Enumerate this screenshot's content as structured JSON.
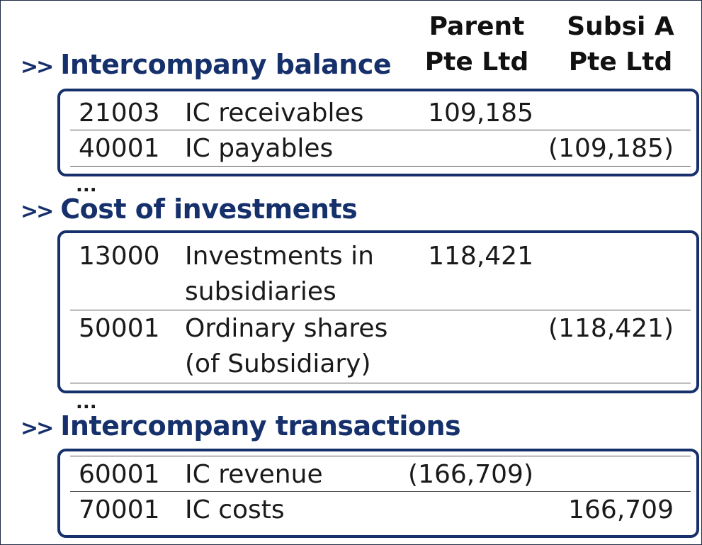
{
  "columns": {
    "parent": [
      "Parent",
      "Pte Ltd"
    ],
    "subsi": [
      "Subsi A",
      "Pte Ltd"
    ]
  },
  "chevron": ">>",
  "ellipsis": "...",
  "sections": [
    {
      "title": "Intercompany balance",
      "rows": [
        {
          "code": "21003",
          "desc": "IC receivables",
          "parent": "109,185",
          "subsi": ""
        },
        {
          "code": "40001",
          "desc": "IC payables",
          "parent": "",
          "subsi": "(109,185)"
        }
      ]
    },
    {
      "title": "Cost of investments",
      "rows": [
        {
          "code": "13000",
          "desc": "Investments in",
          "desc2": "subsidiaries",
          "parent": "118,421",
          "subsi": ""
        },
        {
          "code": "50001",
          "desc": "Ordinary shares",
          "desc2": "(of Subsidiary)",
          "parent": "",
          "subsi": "(118,421)"
        }
      ]
    },
    {
      "title": "Intercompany transactions",
      "rows": [
        {
          "code": "60001",
          "desc": "IC revenue",
          "parent": "(166,709)",
          "subsi": ""
        },
        {
          "code": "70001",
          "desc": "IC costs",
          "parent": "",
          "subsi": "166,709"
        }
      ]
    }
  ]
}
